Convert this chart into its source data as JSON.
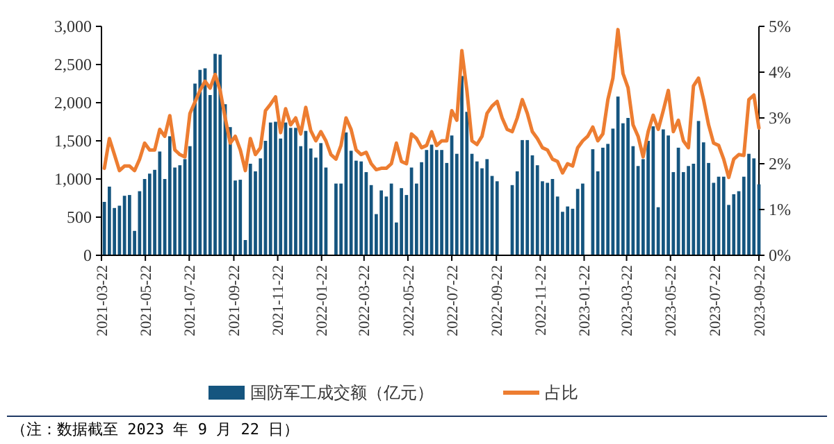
{
  "chart_data": {
    "type": "bar",
    "x": [
      "2021-03-26",
      "2021-04-02",
      "2021-04-09",
      "2021-04-16",
      "2021-04-23",
      "2021-04-30",
      "2021-05-07",
      "2021-05-14",
      "2021-05-21",
      "2021-05-28",
      "2021-06-04",
      "2021-06-11",
      "2021-06-18",
      "2021-06-25",
      "2021-07-02",
      "2021-07-09",
      "2021-07-16",
      "2021-07-23",
      "2021-07-30",
      "2021-08-06",
      "2021-08-13",
      "2021-08-20",
      "2021-08-27",
      "2021-09-03",
      "2021-09-10",
      "2021-09-17",
      "2021-09-24",
      "2021-10-01",
      "2021-10-08",
      "2021-10-15",
      "2021-10-22",
      "2021-10-29",
      "2021-11-05",
      "2021-11-12",
      "2021-11-19",
      "2021-11-26",
      "2021-12-03",
      "2021-12-10",
      "2021-12-17",
      "2021-12-24",
      "2021-12-31",
      "2022-01-07",
      "2022-01-14",
      "2022-01-21",
      "2022-01-28",
      "2022-02-04",
      "2022-02-11",
      "2022-02-18",
      "2022-02-25",
      "2022-03-04",
      "2022-03-11",
      "2022-03-18",
      "2022-03-25",
      "2022-04-01",
      "2022-04-08",
      "2022-04-15",
      "2022-04-22",
      "2022-04-29",
      "2022-05-06",
      "2022-05-13",
      "2022-05-20",
      "2022-05-27",
      "2022-06-03",
      "2022-06-10",
      "2022-06-17",
      "2022-06-24",
      "2022-07-01",
      "2022-07-08",
      "2022-07-15",
      "2022-07-22",
      "2022-07-29",
      "2022-08-05",
      "2022-08-12",
      "2022-08-19",
      "2022-08-26",
      "2022-09-02",
      "2022-09-09",
      "2022-09-16",
      "2022-09-23",
      "2022-09-30",
      "2022-10-07",
      "2022-10-14",
      "2022-10-21",
      "2022-10-28",
      "2022-11-04",
      "2022-11-11",
      "2022-11-18",
      "2022-11-25",
      "2022-12-02",
      "2022-12-09",
      "2022-12-16",
      "2022-12-23",
      "2022-12-30",
      "2023-01-06",
      "2023-01-13",
      "2023-01-20",
      "2023-01-27",
      "2023-02-03",
      "2023-02-10",
      "2023-02-17",
      "2023-02-24",
      "2023-03-03",
      "2023-03-10",
      "2023-03-17",
      "2023-03-24",
      "2023-03-31",
      "2023-04-07",
      "2023-04-14",
      "2023-04-21",
      "2023-04-28",
      "2023-05-05",
      "2023-05-12",
      "2023-05-19",
      "2023-05-26",
      "2023-06-02",
      "2023-06-09",
      "2023-06-16",
      "2023-06-23",
      "2023-06-30",
      "2023-07-07",
      "2023-07-14",
      "2023-07-21",
      "2023-07-28",
      "2023-08-04",
      "2023-08-11",
      "2023-08-18",
      "2023-08-25",
      "2023-09-01",
      "2023-09-08",
      "2023-09-15",
      "2023-09-22"
    ],
    "series": [
      {
        "name": "国防军工成交额（亿元）",
        "color": "#15557f",
        "values": [
          700,
          900,
          620,
          650,
          780,
          790,
          320,
          840,
          1000,
          1070,
          1120,
          1360,
          1000,
          1560,
          1150,
          1180,
          1260,
          1430,
          2250,
          2430,
          2450,
          2100,
          2640,
          2630,
          1980,
          1680,
          980,
          990,
          200,
          1200,
          1100,
          1270,
          1500,
          1740,
          1750,
          1530,
          1740,
          1670,
          1670,
          1430,
          1630,
          1400,
          1280,
          1470,
          1150,
          null,
          940,
          940,
          1610,
          1370,
          1240,
          1230,
          1090,
          920,
          540,
          850,
          770,
          940,
          430,
          880,
          790,
          1150,
          940,
          1220,
          1380,
          1450,
          1380,
          1380,
          1210,
          1570,
          1330,
          2350,
          1880,
          1330,
          1230,
          1140,
          1260,
          1040,
          970,
          null,
          null,
          920,
          1100,
          1510,
          1510,
          1310,
          1180,
          970,
          950,
          1000,
          770,
          570,
          640,
          610,
          870,
          940,
          null,
          1390,
          1100,
          1410,
          1460,
          1660,
          2080,
          1730,
          1800,
          1430,
          1170,
          1260,
          1500,
          1690,
          630,
          1650,
          1570,
          1090,
          1410,
          1090,
          1170,
          1200,
          1760,
          1480,
          1210,
          950,
          1030,
          1030,
          660,
          800,
          840,
          1030,
          1330,
          1270,
          930
        ]
      },
      {
        "name": "占比",
        "type": "line",
        "axis": "y2",
        "color": "#ed7d31",
        "values": [
          1.9,
          2.55,
          2.2,
          1.85,
          1.95,
          1.95,
          1.85,
          2.1,
          2.45,
          2.3,
          2.3,
          2.75,
          2.6,
          3.05,
          2.3,
          2.2,
          2.15,
          3.1,
          3.35,
          3.6,
          3.8,
          3.65,
          3.95,
          3.6,
          3.0,
          2.45,
          2.6,
          2.3,
          1.85,
          2.55,
          2.2,
          2.35,
          3.16,
          3.3,
          3.46,
          2.68,
          3.2,
          2.85,
          3.0,
          2.65,
          3.23,
          2.72,
          2.5,
          2.7,
          2.5,
          2.2,
          2.1,
          2.4,
          3.0,
          2.75,
          2.3,
          2.2,
          2.25,
          2.0,
          1.87,
          1.9,
          1.9,
          2.0,
          2.45,
          2.05,
          2.0,
          2.65,
          2.55,
          2.35,
          2.4,
          2.7,
          2.4,
          2.5,
          2.5,
          3.16,
          2.95,
          4.47,
          3.6,
          2.5,
          2.42,
          2.6,
          3.1,
          3.26,
          3.36,
          3.0,
          2.75,
          2.7,
          3.0,
          3.4,
          3.1,
          2.7,
          2.55,
          2.35,
          2.3,
          2.1,
          2.05,
          1.8,
          2.0,
          1.95,
          2.35,
          2.5,
          2.6,
          2.8,
          2.5,
          2.65,
          3.4,
          3.87,
          4.93,
          3.97,
          3.66,
          2.85,
          2.6,
          2.15,
          2.7,
          3.06,
          2.75,
          3.16,
          3.6,
          2.7,
          2.95,
          2.5,
          2.35,
          3.7,
          3.87,
          3.4,
          2.85,
          2.45,
          2.4,
          2.1,
          1.7,
          2.1,
          2.2,
          2.18,
          3.4,
          3.5,
          2.78
        ]
      }
    ],
    "xlim": [
      "2021-03-22",
      "2023-09-22"
    ],
    "xticks": [
      "2021-03-22",
      "2021-05-22",
      "2021-07-22",
      "2021-09-22",
      "2021-11-22",
      "2022-01-22",
      "2022-03-22",
      "2022-05-22",
      "2022-07-22",
      "2022-09-22",
      "2022-11-22",
      "2023-01-22",
      "2023-03-22",
      "2023-05-22",
      "2023-07-22",
      "2023-09-22"
    ],
    "ylim": [
      0,
      3000
    ],
    "yticks": [
      0,
      {
        "value": 500,
        "label": "500"
      },
      {
        "value": 1000,
        "label": "1,000"
      },
      {
        "value": 1500,
        "label": "1,500"
      },
      {
        "value": 2000,
        "label": "2,000"
      },
      {
        "value": 2500,
        "label": "2,500"
      },
      {
        "value": 3000,
        "label": "3,000"
      }
    ],
    "y2lim": [
      0,
      5
    ],
    "y2ticks": [
      {
        "value": 0,
        "label": "0%"
      },
      {
        "value": 1,
        "label": "1%"
      },
      {
        "value": 2,
        "label": "2%"
      },
      {
        "value": 3,
        "label": "3%"
      },
      {
        "value": 4,
        "label": "4%"
      },
      {
        "value": 5,
        "label": "5%"
      }
    ],
    "legend": "bottom",
    "line_style": "solid",
    "annotations": [
      "（注：数据截至 2023 年 9 月 22 日）"
    ]
  }
}
